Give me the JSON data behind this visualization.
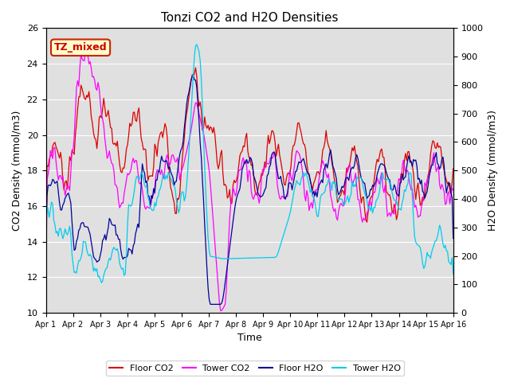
{
  "title": "Tonzi CO2 and H2O Densities",
  "xlabel": "Time",
  "ylabel_left": "CO2 Density (mmol/m3)",
  "ylabel_right": "H2O Density (mmol/m3)",
  "ylim_left": [
    10,
    26
  ],
  "ylim_right": [
    0,
    1000
  ],
  "annotation_text": "TZ_mixed",
  "annotation_color": "#cc0000",
  "annotation_bg": "#ffffcc",
  "annotation_border": "#cc2200",
  "colors": {
    "floor_co2": "#dd0000",
    "tower_co2": "#ff00ff",
    "floor_h2o": "#000099",
    "tower_h2o": "#00ccee"
  },
  "legend_labels": [
    "Floor CO2",
    "Tower CO2",
    "Floor H2O",
    "Tower H2O"
  ],
  "x_tick_labels": [
    "Apr 1",
    "Apr 2",
    "Apr 3",
    "Apr 4",
    "Apr 5",
    "Apr 6",
    "Apr 7",
    "Apr 8",
    "Apr 9",
    "Apr 10",
    "Apr 11",
    "Apr 12",
    "Apr 13",
    "Apr 14",
    "Apr 15",
    "Apr 16"
  ],
  "duration_days": 15,
  "background_color": "#e0e0e0",
  "figure_bg": "#ffffff",
  "grid_color": "#ffffff",
  "line_width": 0.9
}
